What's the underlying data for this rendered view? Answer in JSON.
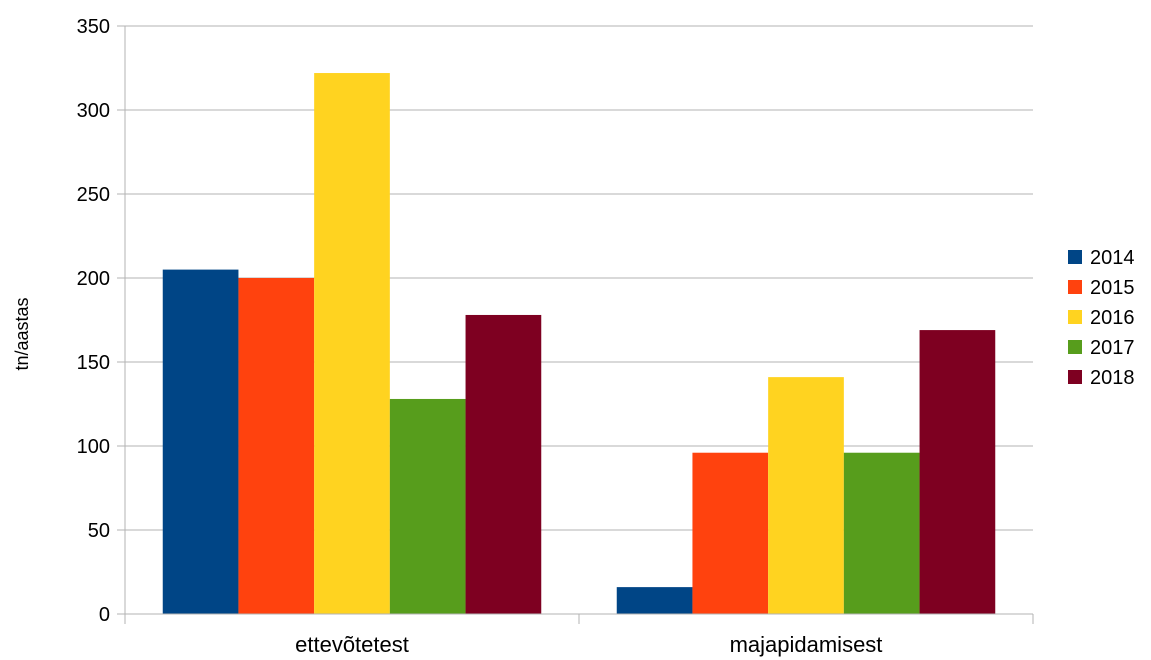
{
  "chart_data": {
    "type": "bar",
    "title": "",
    "xlabel": "",
    "ylabel": "tn/aastas",
    "categories": [
      "ettevõtetest",
      "majapidamisest"
    ],
    "ylim": [
      0,
      350
    ],
    "yticks": [
      0,
      50,
      100,
      150,
      200,
      250,
      300,
      350
    ],
    "grid": true,
    "legend_position": "right",
    "series": [
      {
        "name": "2014",
        "color": "#004586",
        "values": [
          205,
          16
        ]
      },
      {
        "name": "2015",
        "color": "#ff420e",
        "values": [
          200,
          96
        ]
      },
      {
        "name": "2016",
        "color": "#ffd320",
        "values": [
          322,
          141
        ]
      },
      {
        "name": "2017",
        "color": "#579d1c",
        "values": [
          128,
          96
        ]
      },
      {
        "name": "2018",
        "color": "#7e0021",
        "values": [
          178,
          169
        ]
      }
    ]
  }
}
